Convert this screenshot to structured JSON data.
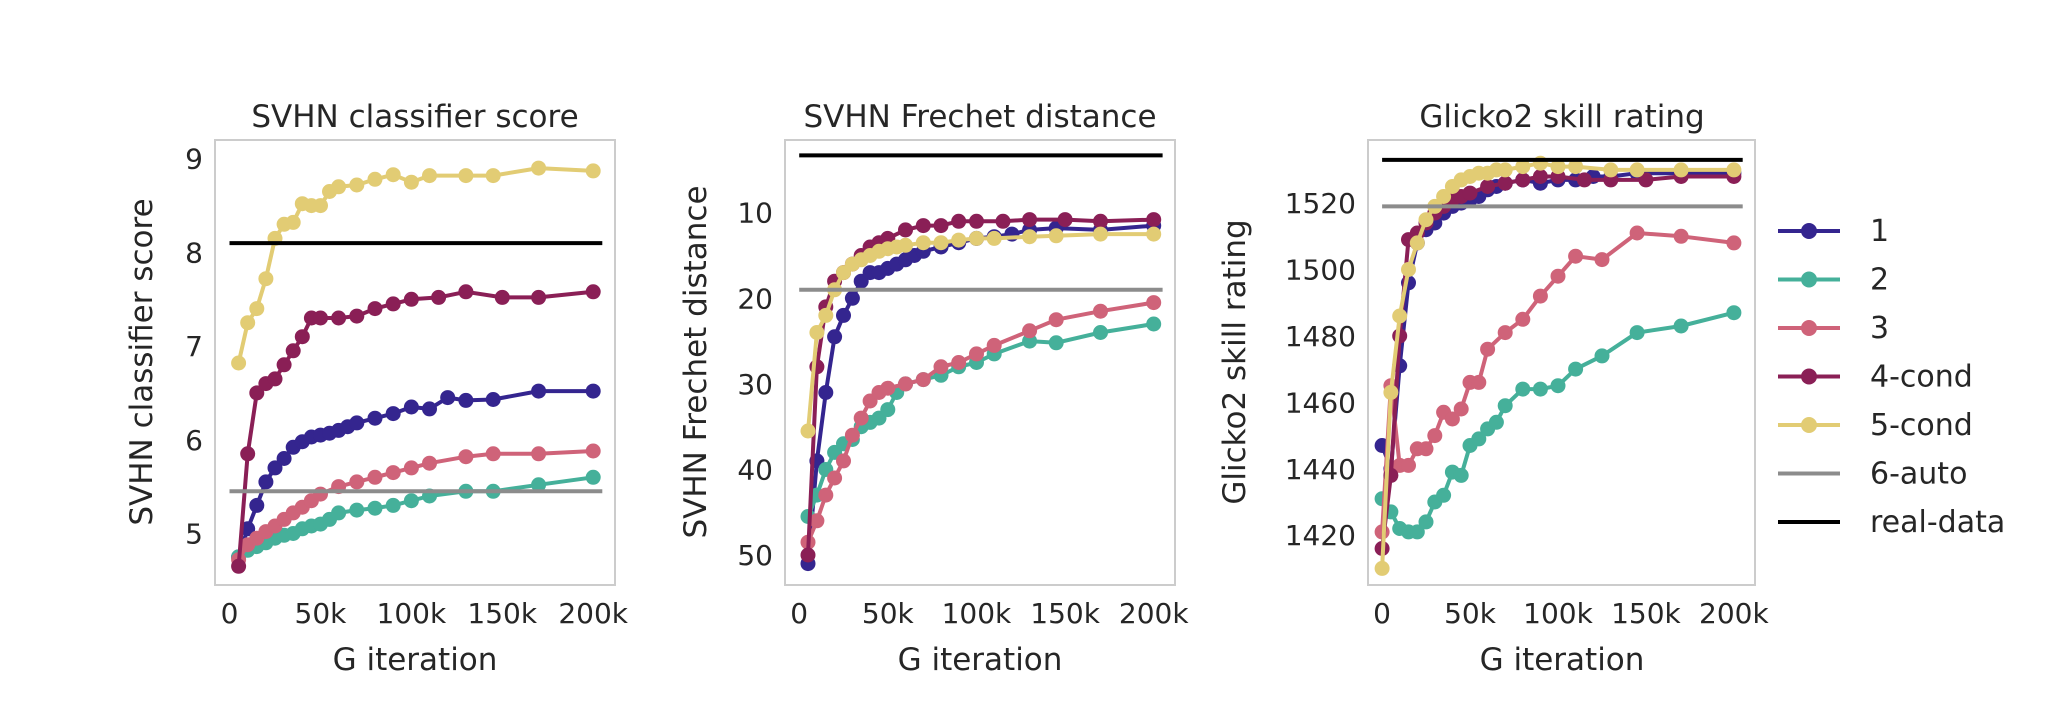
{
  "colors": {
    "1": "#34258f",
    "2": "#45b09a",
    "3": "#cf6379",
    "4-cond": "#8a1f56",
    "5-cond": "#e2cc74",
    "6-auto": "#8c8c8c",
    "real-data": "#000000",
    "frame": "#cccccc"
  },
  "legend": {
    "items": [
      {
        "label": "1",
        "color": "#34258f",
        "marker": true
      },
      {
        "label": "2",
        "color": "#45b09a",
        "marker": true
      },
      {
        "label": "3",
        "color": "#cf6379",
        "marker": true
      },
      {
        "label": "4-cond",
        "color": "#8a1f56",
        "marker": true
      },
      {
        "label": "5-cond",
        "color": "#e2cc74",
        "marker": true
      },
      {
        "label": "6-auto",
        "color": "#8c8c8c",
        "marker": false
      },
      {
        "label": "real-data",
        "color": "#000000",
        "marker": false
      }
    ]
  },
  "chart_data": [
    {
      "type": "line",
      "title": "SVHN classifier score",
      "xlabel": "G iteration",
      "ylabel": "SVHN classifier score",
      "xlim": [
        -8000,
        212000
      ],
      "ylim": [
        4.45,
        9.2
      ],
      "xticks": [
        0,
        50000,
        100000,
        150000,
        200000
      ],
      "xtick_labels": [
        "0",
        "50k",
        "100k",
        "150k",
        "200k"
      ],
      "yticks": [
        5,
        6,
        7,
        8,
        9
      ],
      "ytick_labels": [
        "5",
        "6",
        "7",
        "8",
        "9"
      ],
      "y_inverted": false,
      "grid": false,
      "series": [
        {
          "name": "1",
          "x": [
            5000,
            10000,
            15000,
            20000,
            25000,
            30000,
            35000,
            40000,
            45000,
            50000,
            55000,
            60000,
            65000,
            70000,
            80000,
            90000,
            100000,
            110000,
            120000,
            130000,
            145000,
            170000,
            200000
          ],
          "y": [
            4.75,
            5.05,
            5.3,
            5.55,
            5.7,
            5.8,
            5.92,
            5.98,
            6.03,
            6.05,
            6.07,
            6.1,
            6.14,
            6.18,
            6.23,
            6.28,
            6.35,
            6.33,
            6.45,
            6.42,
            6.43,
            6.52,
            6.52
          ]
        },
        {
          "name": "2",
          "x": [
            5000,
            10000,
            15000,
            20000,
            25000,
            30000,
            35000,
            40000,
            45000,
            50000,
            55000,
            60000,
            70000,
            80000,
            90000,
            100000,
            110000,
            130000,
            145000,
            170000,
            200000
          ],
          "y": [
            4.75,
            4.82,
            4.86,
            4.9,
            4.95,
            4.98,
            5.0,
            5.05,
            5.08,
            5.1,
            5.15,
            5.22,
            5.25,
            5.27,
            5.3,
            5.35,
            5.4,
            5.45,
            5.45,
            5.52,
            5.6
          ]
        },
        {
          "name": "3",
          "x": [
            5000,
            10000,
            15000,
            20000,
            25000,
            30000,
            35000,
            40000,
            45000,
            50000,
            60000,
            70000,
            80000,
            90000,
            100000,
            110000,
            130000,
            145000,
            170000,
            200000
          ],
          "y": [
            4.72,
            4.88,
            4.95,
            5.02,
            5.08,
            5.15,
            5.22,
            5.28,
            5.35,
            5.42,
            5.5,
            5.55,
            5.6,
            5.65,
            5.7,
            5.75,
            5.82,
            5.85,
            5.85,
            5.88
          ]
        },
        {
          "name": "4-cond",
          "x": [
            5000,
            10000,
            15000,
            20000,
            25000,
            30000,
            35000,
            40000,
            45000,
            50000,
            60000,
            70000,
            80000,
            90000,
            100000,
            115000,
            130000,
            150000,
            170000,
            200000
          ],
          "y": [
            4.65,
            5.85,
            6.5,
            6.6,
            6.65,
            6.8,
            6.95,
            7.1,
            7.3,
            7.3,
            7.3,
            7.32,
            7.4,
            7.45,
            7.5,
            7.52,
            7.58,
            7.52,
            7.52,
            7.58
          ]
        },
        {
          "name": "5-cond",
          "x": [
            5000,
            10000,
            15000,
            20000,
            25000,
            30000,
            35000,
            40000,
            45000,
            50000,
            55000,
            60000,
            70000,
            80000,
            90000,
            100000,
            110000,
            130000,
            145000,
            170000,
            200000
          ],
          "y": [
            6.82,
            7.25,
            7.4,
            7.72,
            8.15,
            8.3,
            8.32,
            8.52,
            8.5,
            8.5,
            8.65,
            8.7,
            8.72,
            8.78,
            8.83,
            8.75,
            8.82,
            8.82,
            8.82,
            8.9,
            8.87
          ]
        },
        {
          "name": "6-auto",
          "x": [
            0,
            205000
          ],
          "y": [
            5.45,
            5.45
          ]
        },
        {
          "name": "real-data",
          "x": [
            0,
            205000
          ],
          "y": [
            8.1,
            8.1
          ]
        }
      ]
    },
    {
      "type": "line",
      "title": "SVHN Frechet distance",
      "xlabel": "G iteration",
      "ylabel": "SVHN Frechet distance",
      "xlim": [
        -8000,
        212000
      ],
      "ylim": [
        53.5,
        1.5
      ],
      "xticks": [
        0,
        50000,
        100000,
        150000,
        200000
      ],
      "xtick_labels": [
        "0",
        "50k",
        "100k",
        "150k",
        "200k"
      ],
      "yticks": [
        10,
        20,
        30,
        40,
        50
      ],
      "ytick_labels": [
        "10",
        "20",
        "30",
        "40",
        "50"
      ],
      "y_inverted": true,
      "grid": false,
      "series": [
        {
          "name": "1",
          "x": [
            5000,
            10000,
            15000,
            20000,
            25000,
            30000,
            35000,
            40000,
            45000,
            50000,
            55000,
            60000,
            65000,
            70000,
            80000,
            90000,
            100000,
            110000,
            120000,
            130000,
            145000,
            170000,
            200000
          ],
          "y": [
            51,
            39,
            31,
            24.5,
            22,
            20,
            18,
            17,
            17,
            16.5,
            16,
            15.5,
            15,
            14.5,
            14,
            13.5,
            13,
            12.8,
            12.5,
            12,
            11.8,
            12,
            11.5
          ]
        },
        {
          "name": "2",
          "x": [
            5000,
            10000,
            15000,
            20000,
            25000,
            30000,
            35000,
            40000,
            45000,
            50000,
            55000,
            60000,
            70000,
            80000,
            90000,
            100000,
            110000,
            130000,
            145000,
            170000,
            200000
          ],
          "y": [
            45.5,
            43,
            40,
            38,
            37,
            36.5,
            35,
            34.5,
            34,
            33,
            31,
            30,
            29.5,
            29,
            28,
            27.5,
            26.5,
            25,
            25.2,
            24,
            23
          ]
        },
        {
          "name": "3",
          "x": [
            5000,
            10000,
            15000,
            20000,
            25000,
            30000,
            35000,
            40000,
            45000,
            50000,
            60000,
            70000,
            80000,
            90000,
            100000,
            110000,
            130000,
            145000,
            170000,
            200000
          ],
          "y": [
            48.5,
            46,
            43,
            41,
            39,
            36,
            34,
            32,
            31,
            30.5,
            30,
            29.5,
            28,
            27.5,
            26.5,
            25.5,
            23.8,
            22.5,
            21.5,
            20.5
          ]
        },
        {
          "name": "4-cond",
          "x": [
            5000,
            10000,
            15000,
            20000,
            25000,
            30000,
            35000,
            40000,
            45000,
            50000,
            60000,
            70000,
            80000,
            90000,
            100000,
            115000,
            130000,
            150000,
            170000,
            200000
          ],
          "y": [
            50,
            28,
            21,
            18,
            17,
            16,
            15,
            14,
            13.5,
            13,
            12,
            11.5,
            11.5,
            11,
            11,
            11,
            10.8,
            10.8,
            11,
            10.8
          ]
        },
        {
          "name": "5-cond",
          "x": [
            5000,
            10000,
            15000,
            20000,
            25000,
            30000,
            35000,
            40000,
            45000,
            50000,
            55000,
            60000,
            70000,
            80000,
            90000,
            100000,
            110000,
            130000,
            145000,
            170000,
            200000
          ],
          "y": [
            35.5,
            24,
            22,
            19,
            17,
            16,
            15.5,
            15,
            14.5,
            14.2,
            14,
            13.8,
            13.5,
            13.5,
            13.2,
            13,
            13,
            12.8,
            12.7,
            12.5,
            12.5
          ]
        },
        {
          "name": "6-auto",
          "x": [
            0,
            205000
          ],
          "y": [
            19,
            19
          ]
        },
        {
          "name": "real-data",
          "x": [
            0,
            205000
          ],
          "y": [
            3.3,
            3.3
          ]
        }
      ]
    },
    {
      "type": "line",
      "title": "Glicko2 skill rating",
      "xlabel": "G iteration",
      "ylabel": "Glicko2 skill rating",
      "xlim": [
        -8000,
        212000
      ],
      "ylim": [
        1405,
        1539
      ],
      "xticks": [
        0,
        50000,
        100000,
        150000,
        200000
      ],
      "xtick_labels": [
        "0",
        "50k",
        "100k",
        "150k",
        "200k"
      ],
      "yticks": [
        1420,
        1440,
        1460,
        1480,
        1500,
        1520
      ],
      "ytick_labels": [
        "1420",
        "1440",
        "1460",
        "1480",
        "1500",
        "1520"
      ],
      "y_inverted": false,
      "grid": false,
      "series": [
        {
          "name": "1",
          "x": [
            0,
            5000,
            10000,
            15000,
            20000,
            25000,
            30000,
            35000,
            40000,
            45000,
            50000,
            55000,
            60000,
            65000,
            70000,
            80000,
            90000,
            100000,
            110000,
            120000,
            130000,
            145000,
            170000,
            200000
          ],
          "y": [
            1447,
            1440,
            1471,
            1496,
            1508,
            1512,
            1514,
            1517,
            1519,
            1520,
            1521,
            1522,
            1524,
            1525,
            1526,
            1527,
            1526,
            1527,
            1527,
            1528,
            1528,
            1529,
            1529,
            1529
          ]
        },
        {
          "name": "2",
          "x": [
            0,
            5000,
            10000,
            15000,
            20000,
            25000,
            30000,
            35000,
            40000,
            45000,
            50000,
            55000,
            60000,
            65000,
            70000,
            80000,
            90000,
            100000,
            110000,
            125000,
            145000,
            170000,
            200000
          ],
          "y": [
            1431,
            1427,
            1422,
            1421,
            1421,
            1424,
            1430,
            1432,
            1439,
            1438,
            1447,
            1449,
            1452,
            1454,
            1459,
            1464,
            1464,
            1465,
            1470,
            1474,
            1481,
            1483,
            1487
          ]
        },
        {
          "name": "3",
          "x": [
            0,
            5000,
            10000,
            15000,
            20000,
            25000,
            30000,
            35000,
            40000,
            45000,
            50000,
            55000,
            60000,
            70000,
            80000,
            90000,
            100000,
            110000,
            125000,
            145000,
            170000,
            200000
          ],
          "y": [
            1421,
            1465,
            1441,
            1441,
            1446,
            1446,
            1450,
            1457,
            1455,
            1458,
            1466,
            1466,
            1476,
            1481,
            1485,
            1492,
            1498,
            1504,
            1503,
            1511,
            1510,
            1508
          ]
        },
        {
          "name": "4-cond",
          "x": [
            0,
            5000,
            10000,
            15000,
            20000,
            25000,
            30000,
            35000,
            40000,
            45000,
            50000,
            60000,
            70000,
            80000,
            90000,
            100000,
            115000,
            130000,
            150000,
            170000,
            200000
          ],
          "y": [
            1416,
            1438,
            1480,
            1509,
            1511,
            1514,
            1517,
            1519,
            1521,
            1522,
            1523,
            1525,
            1526,
            1527,
            1528,
            1528,
            1527,
            1527,
            1527,
            1528,
            1528
          ]
        },
        {
          "name": "5-cond",
          "x": [
            0,
            5000,
            10000,
            15000,
            20000,
            25000,
            30000,
            35000,
            40000,
            45000,
            50000,
            55000,
            60000,
            65000,
            70000,
            80000,
            90000,
            100000,
            110000,
            130000,
            145000,
            170000,
            200000
          ],
          "y": [
            1410,
            1463,
            1486,
            1500,
            1508,
            1515,
            1519,
            1522,
            1525,
            1527,
            1528,
            1529,
            1529,
            1530,
            1530,
            1531,
            1532,
            1531,
            1531,
            1530,
            1530,
            1530,
            1530
          ]
        },
        {
          "name": "6-auto",
          "x": [
            0,
            205000
          ],
          "y": [
            1519,
            1519
          ]
        },
        {
          "name": "real-data",
          "x": [
            0,
            205000
          ],
          "y": [
            1533,
            1533
          ]
        }
      ]
    }
  ]
}
